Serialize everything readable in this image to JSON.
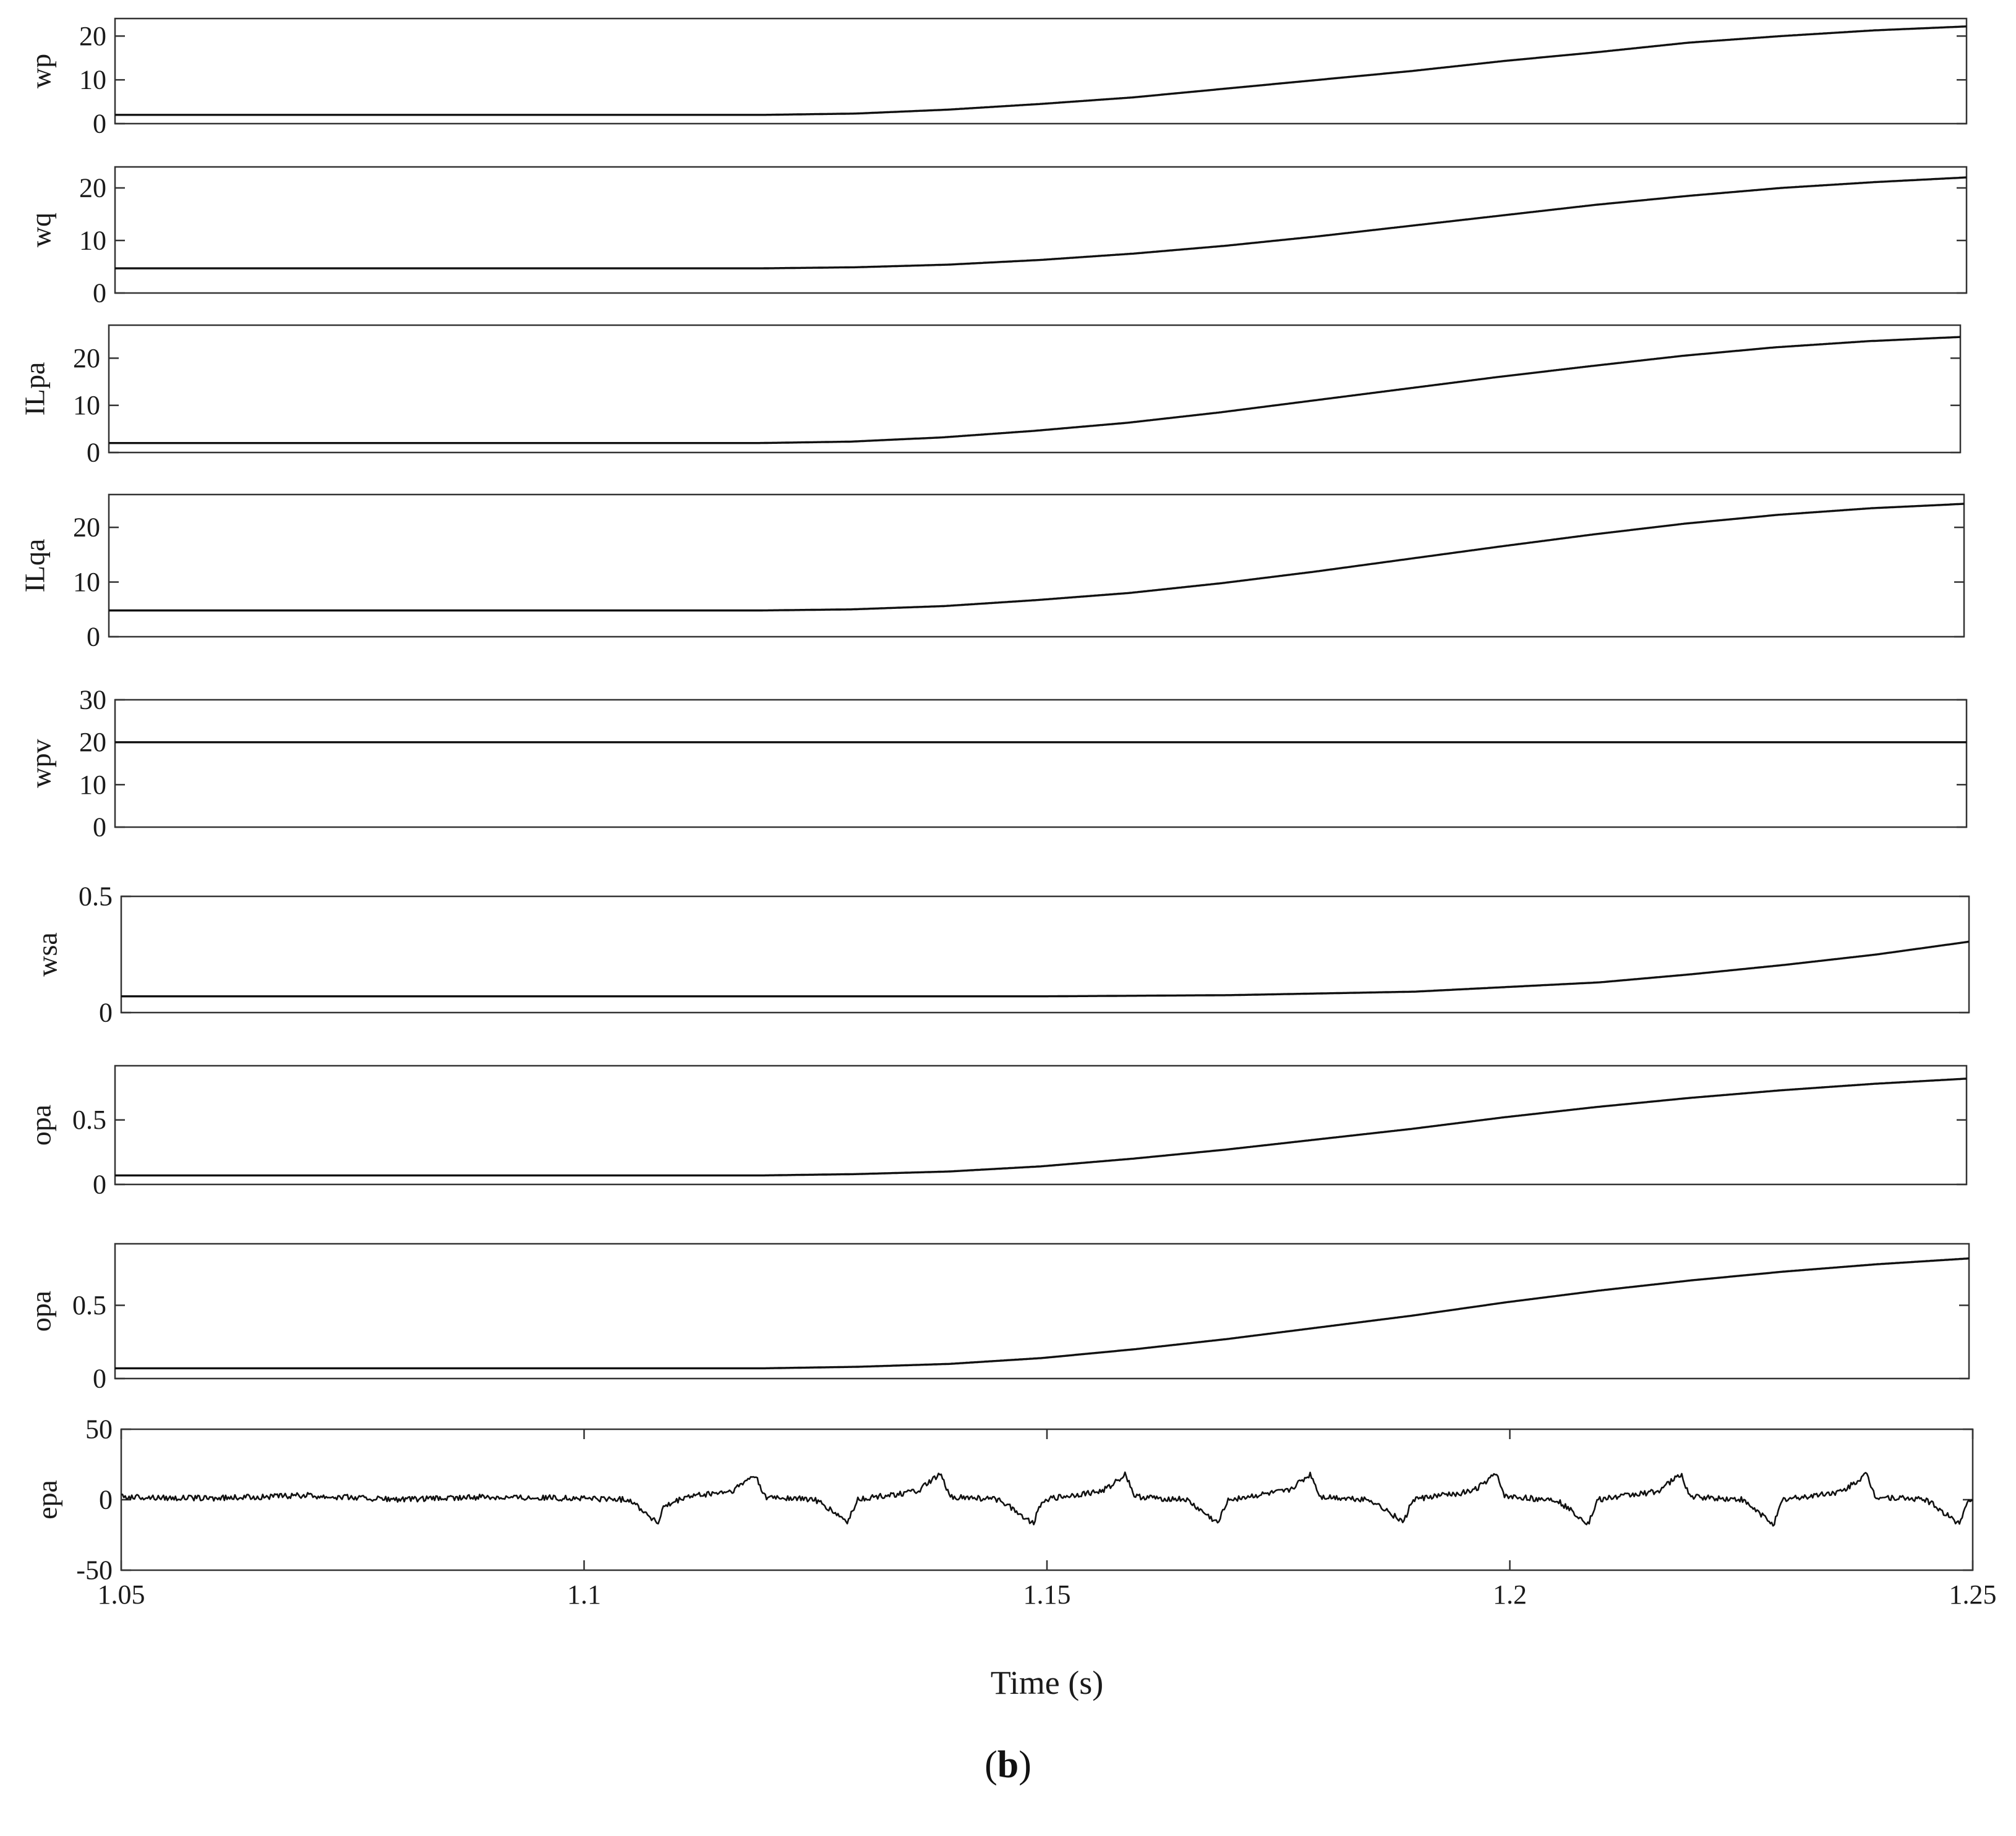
{
  "figure": {
    "caption_open": "(",
    "caption_letter": "b",
    "caption_close": ")",
    "line_color": "#111111"
  },
  "chart_data": [
    {
      "type": "line",
      "ylabel": "wp",
      "ylim": [
        0,
        24
      ],
      "yticks": [
        0,
        10,
        20
      ],
      "xlim": [
        1.05,
        1.25
      ],
      "x": [
        1.05,
        1.1,
        1.12,
        1.13,
        1.14,
        1.15,
        1.16,
        1.17,
        1.18,
        1.19,
        1.2,
        1.21,
        1.22,
        1.23,
        1.24,
        1.25
      ],
      "y": [
        2.0,
        2.0,
        2.0,
        2.3,
        3.2,
        4.5,
        6.0,
        8.0,
        10.0,
        12.0,
        14.3,
        16.3,
        18.5,
        20.0,
        21.3,
        22.2
      ]
    },
    {
      "type": "line",
      "ylabel": "wq",
      "ylim": [
        0,
        24
      ],
      "yticks": [
        0,
        10,
        20
      ],
      "xlim": [
        1.05,
        1.25
      ],
      "x": [
        1.05,
        1.1,
        1.12,
        1.13,
        1.14,
        1.15,
        1.16,
        1.17,
        1.18,
        1.19,
        1.2,
        1.21,
        1.22,
        1.23,
        1.24,
        1.25
      ],
      "y": [
        4.7,
        4.7,
        4.7,
        4.9,
        5.4,
        6.3,
        7.5,
        9.0,
        10.8,
        12.8,
        14.8,
        16.8,
        18.5,
        20.0,
        21.1,
        22.0
      ]
    },
    {
      "type": "line",
      "ylabel": "ILpa",
      "ylim": [
        0,
        27
      ],
      "yticks": [
        0,
        10,
        20
      ],
      "xlim": [
        1.05,
        1.25
      ],
      "x": [
        1.05,
        1.1,
        1.12,
        1.13,
        1.14,
        1.15,
        1.16,
        1.17,
        1.18,
        1.19,
        1.2,
        1.21,
        1.22,
        1.23,
        1.24,
        1.25
      ],
      "y": [
        2.0,
        2.0,
        2.0,
        2.3,
        3.2,
        4.6,
        6.3,
        8.5,
        11.0,
        13.5,
        16.0,
        18.3,
        20.5,
        22.3,
        23.6,
        24.5
      ]
    },
    {
      "type": "line",
      "ylabel": "ILqa",
      "ylim": [
        0,
        26
      ],
      "yticks": [
        0,
        10,
        20
      ],
      "xlim": [
        1.05,
        1.25
      ],
      "x": [
        1.05,
        1.1,
        1.12,
        1.13,
        1.14,
        1.15,
        1.16,
        1.17,
        1.18,
        1.19,
        1.2,
        1.21,
        1.22,
        1.23,
        1.24,
        1.25
      ],
      "y": [
        4.8,
        4.8,
        4.8,
        5.0,
        5.6,
        6.7,
        8.0,
        9.8,
        11.9,
        14.2,
        16.5,
        18.7,
        20.7,
        22.3,
        23.5,
        24.3
      ]
    },
    {
      "type": "line",
      "ylabel": "wpv",
      "ylim": [
        0,
        30
      ],
      "yticks": [
        0,
        10,
        20,
        30
      ],
      "xlim": [
        1.05,
        1.25
      ],
      "x": [
        1.05,
        1.25
      ],
      "y": [
        20.0,
        20.0
      ]
    },
    {
      "type": "line",
      "ylabel": "wsa",
      "ylim": [
        0,
        0.5
      ],
      "yticks": [
        0,
        0.5
      ],
      "xlim": [
        1.05,
        1.25
      ],
      "x": [
        1.05,
        1.15,
        1.17,
        1.19,
        1.2,
        1.21,
        1.22,
        1.23,
        1.24,
        1.25
      ],
      "y": [
        0.07,
        0.07,
        0.075,
        0.09,
        0.11,
        0.13,
        0.165,
        0.205,
        0.25,
        0.305
      ]
    },
    {
      "type": "line",
      "ylabel": "opa",
      "ylim": [
        0,
        0.92
      ],
      "yticks": [
        0,
        0.5
      ],
      "xlim": [
        1.05,
        1.25
      ],
      "x": [
        1.05,
        1.1,
        1.12,
        1.13,
        1.14,
        1.15,
        1.16,
        1.17,
        1.18,
        1.19,
        1.2,
        1.21,
        1.22,
        1.23,
        1.24,
        1.25
      ],
      "y": [
        0.07,
        0.07,
        0.07,
        0.08,
        0.1,
        0.14,
        0.2,
        0.27,
        0.35,
        0.43,
        0.52,
        0.6,
        0.67,
        0.73,
        0.78,
        0.82
      ]
    },
    {
      "type": "line",
      "ylabel": "opa",
      "ylim": [
        0,
        0.92
      ],
      "yticks": [
        0,
        0.5
      ],
      "xlim": [
        1.05,
        1.25
      ],
      "x": [
        1.05,
        1.1,
        1.12,
        1.13,
        1.14,
        1.15,
        1.16,
        1.17,
        1.18,
        1.19,
        1.2,
        1.21,
        1.22,
        1.23,
        1.24,
        1.25
      ],
      "y": [
        0.07,
        0.07,
        0.07,
        0.08,
        0.1,
        0.14,
        0.2,
        0.27,
        0.35,
        0.43,
        0.52,
        0.6,
        0.67,
        0.73,
        0.78,
        0.82
      ]
    },
    {
      "type": "line",
      "ylabel": "epa",
      "ylim": [
        -50,
        50
      ],
      "yticks": [
        -50,
        0,
        50
      ],
      "xlim": [
        1.05,
        1.25
      ],
      "xticks": [
        1.05,
        1.1,
        1.15,
        1.2,
        1.25
      ],
      "xlabel": "Time (s)",
      "noise_amplitude": 2,
      "x": [
        1.05,
        1.06,
        1.07,
        1.08,
        1.09,
        1.1,
        1.105,
        1.108,
        1.1085,
        1.111,
        1.116,
        1.1185,
        1.1195,
        1.125,
        1.1285,
        1.1295,
        1.136,
        1.1385,
        1.1395,
        1.145,
        1.1485,
        1.1495,
        1.156,
        1.1585,
        1.1595,
        1.165,
        1.1685,
        1.1695,
        1.176,
        1.1785,
        1.1795,
        1.185,
        1.1885,
        1.1895,
        1.196,
        1.1985,
        1.1995,
        1.205,
        1.2085,
        1.2095,
        1.216,
        1.2185,
        1.2195,
        1.225,
        1.2285,
        1.2295,
        1.236,
        1.2385,
        1.2395,
        1.245,
        1.2485,
        1.2495,
        1.25
      ],
      "y": [
        2,
        1,
        3,
        0,
        2,
        1,
        0,
        -17,
        -6,
        2,
        6,
        18,
        2,
        0,
        -16,
        0,
        6,
        18,
        2,
        0,
        -17,
        0,
        6,
        18,
        2,
        0,
        -17,
        0,
        6,
        18,
        2,
        0,
        -16,
        0,
        6,
        18,
        2,
        0,
        -17,
        0,
        6,
        18,
        2,
        0,
        -17,
        0,
        6,
        18,
        2,
        0,
        -17,
        0,
        0
      ]
    }
  ]
}
